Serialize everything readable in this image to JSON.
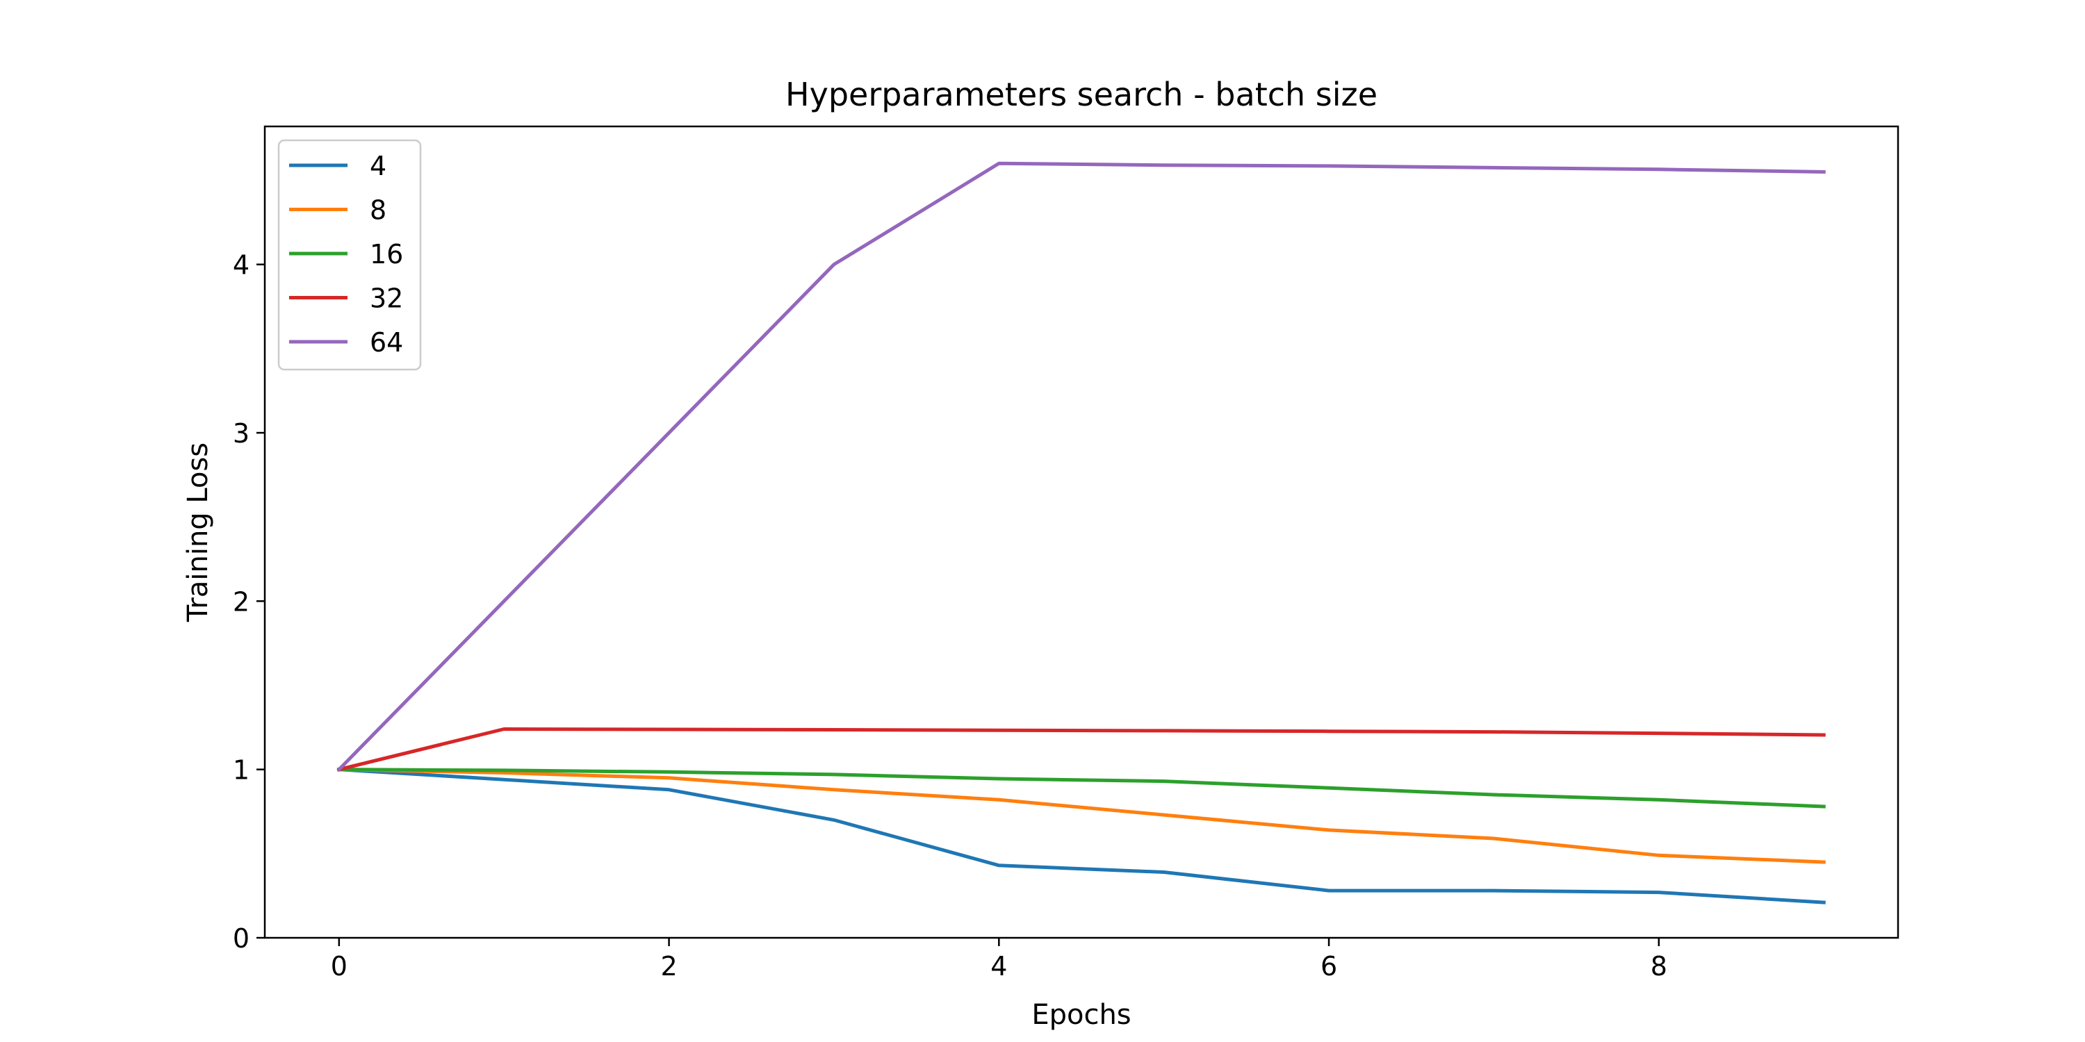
{
  "chart_data": {
    "type": "line",
    "title": "Hyperparameters search - batch size",
    "xlabel": "Epochs",
    "ylabel": "Training Loss",
    "x": [
      0,
      1,
      2,
      3,
      4,
      5,
      6,
      7,
      8,
      9
    ],
    "xlim": [
      -0.45,
      9.45
    ],
    "ylim": [
      0,
      4.82
    ],
    "xticks": [
      "0",
      "2",
      "4",
      "6",
      "8"
    ],
    "yticks": [
      "0",
      "1",
      "2",
      "3",
      "4"
    ],
    "grid": false,
    "legend_position": "upper left",
    "series": [
      {
        "name": "4",
        "color": "#1f77b4",
        "values": [
          1.0,
          0.94,
          0.88,
          0.7,
          0.43,
          0.39,
          0.28,
          0.28,
          0.27,
          0.21
        ]
      },
      {
        "name": "8",
        "color": "#ff7f0e",
        "values": [
          1.0,
          0.98,
          0.95,
          0.88,
          0.82,
          0.73,
          0.64,
          0.59,
          0.49,
          0.45
        ]
      },
      {
        "name": "16",
        "color": "#2ca02c",
        "values": [
          1.0,
          0.995,
          0.985,
          0.97,
          0.945,
          0.93,
          0.89,
          0.85,
          0.82,
          0.78
        ]
      },
      {
        "name": "32",
        "color": "#d62728",
        "values": [
          1.0,
          1.24,
          1.238,
          1.236,
          1.233,
          1.23,
          1.227,
          1.223,
          1.215,
          1.205
        ]
      },
      {
        "name": "64",
        "color": "#9467bd",
        "values": [
          1.0,
          2.0,
          3.0,
          4.0,
          4.6,
          4.59,
          4.585,
          4.575,
          4.565,
          4.55
        ]
      }
    ]
  }
}
